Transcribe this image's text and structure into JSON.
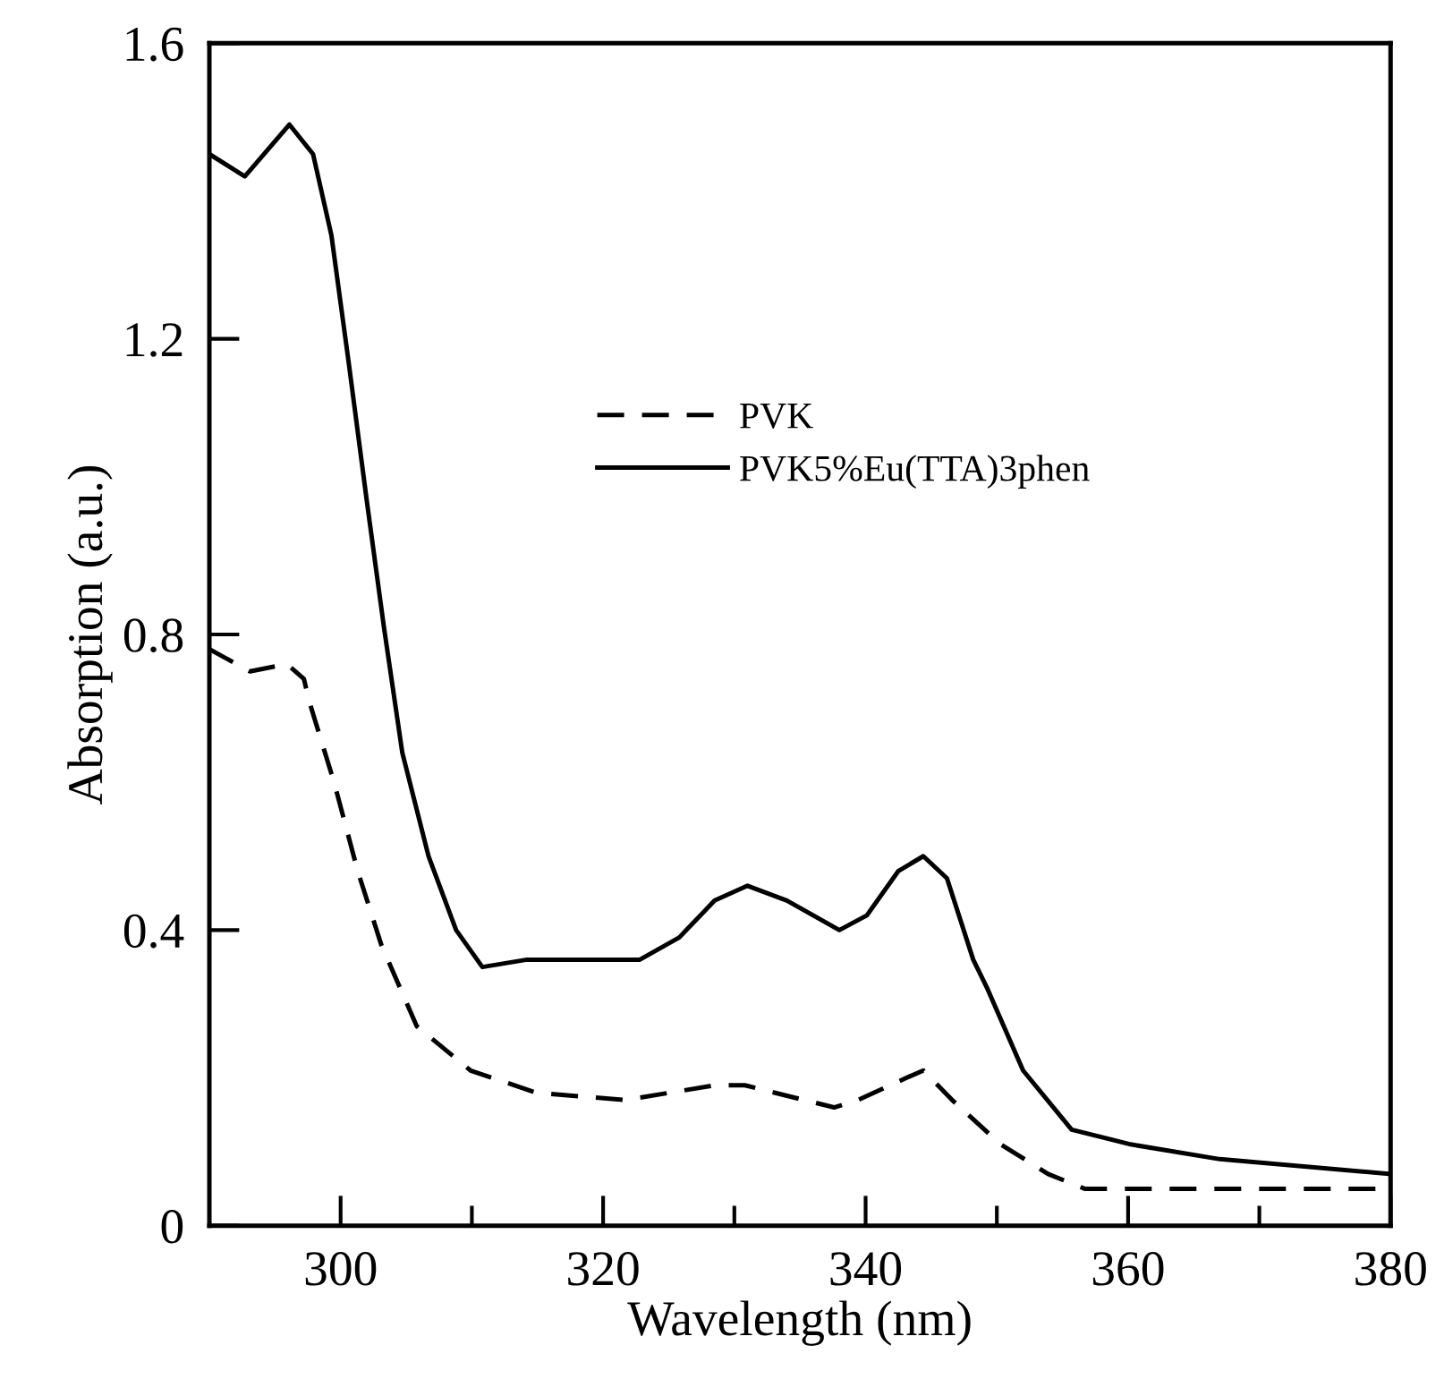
{
  "chart_data": {
    "type": "line",
    "xlabel": "Wavelength (nm)",
    "ylabel": "Absorption (a.u.)",
    "xlim": [
      290,
      380
    ],
    "ylim": [
      0,
      1.6
    ],
    "xticks": [
      300,
      {
        "value": 310,
        "label": null
      },
      320,
      {
        "value": 330,
        "label": null
      },
      340,
      {
        "value": 350,
        "label": null
      },
      360,
      {
        "value": 370,
        "label": null
      },
      380
    ],
    "yticks": [
      0,
      0.4,
      0.8,
      1.2,
      1.6
    ],
    "grid": false,
    "legend": "center",
    "marker": "none",
    "series": [
      {
        "name": "PVK",
        "color": "#000000",
        "line_style": "dashed",
        "x": [
          290,
          293.1,
          295.9,
          297.2,
          297.6,
          299.5,
          301.3,
          303.1,
          305.8,
          309.9,
          314.9,
          321.7,
          328.5,
          330.8,
          337.6,
          339.4,
          343.1,
          344.4,
          346.6,
          350.3,
          353.9,
          356.7,
          360,
          380
        ],
        "values": [
          0.78,
          0.75,
          0.76,
          0.74,
          0.71,
          0.6,
          0.48,
          0.38,
          0.27,
          0.21,
          0.18,
          0.17,
          0.19,
          0.19,
          0.16,
          0.17,
          0.2,
          0.21,
          0.17,
          0.11,
          0.07,
          0.05,
          0.05,
          0.05
        ]
      },
      {
        "name": "PVK5%Eu(TTA)3phen",
        "color": "#000000",
        "line_style": "solid",
        "x": [
          290,
          292.7,
          296.1,
          297.9,
          299.3,
          300.6,
          302,
          303.3,
          304.7,
          306.7,
          308.8,
          310.8,
          314.2,
          318.3,
          322.8,
          325.8,
          328.5,
          331,
          334,
          338,
          340.1,
          342.5,
          344.4,
          346.2,
          348.2,
          349.3,
          352,
          355.7,
          360.2,
          367,
          380
        ],
        "values": [
          1.45,
          1.42,
          1.49,
          1.45,
          1.34,
          1.17,
          0.98,
          0.81,
          0.64,
          0.5,
          0.4,
          0.35,
          0.36,
          0.36,
          0.36,
          0.39,
          0.44,
          0.46,
          0.44,
          0.4,
          0.42,
          0.48,
          0.5,
          0.47,
          0.36,
          0.32,
          0.21,
          0.13,
          0.11,
          0.09,
          0.07
        ]
      }
    ]
  }
}
